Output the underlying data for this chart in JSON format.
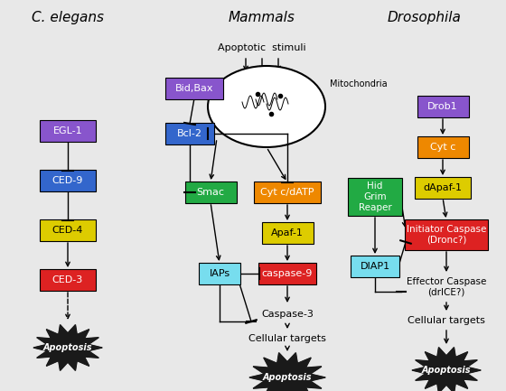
{
  "bg_color": "#e8e8e8",
  "title_left": "C. elegans",
  "title_mid": "Mammals",
  "title_right": "Drosophila",
  "figsize": [
    5.6,
    4.33
  ],
  "dpi": 100
}
